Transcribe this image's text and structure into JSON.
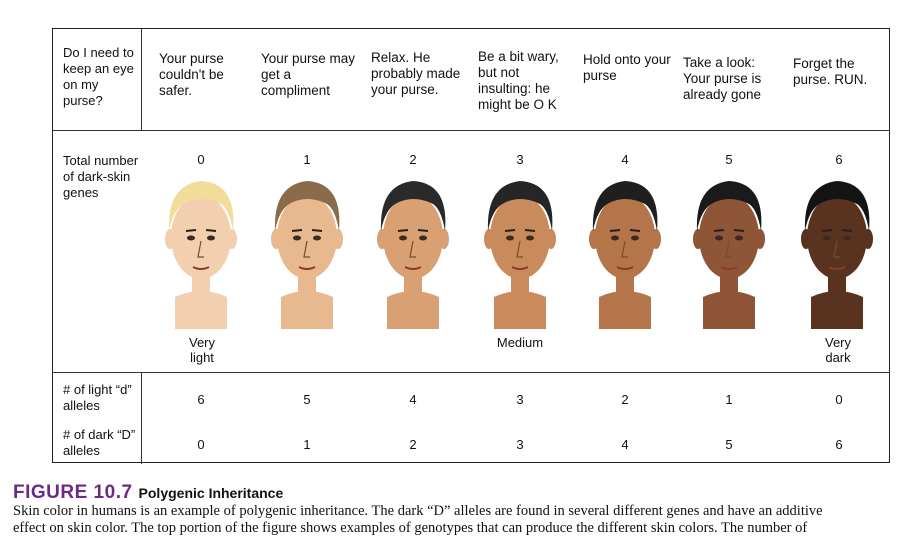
{
  "table": {
    "header_question": "Do I need to keep an eye on my purse?",
    "captions": [
      "Your purse couldn't be safer.",
      "Your purse may get a compliment",
      "Relax. He probably made your purse.",
      "Be a bit wary, but not insulting: he might be O K",
      "Hold onto your purse",
      "Take a look: Your purse is already gone",
      "Forget the purse. RUN."
    ],
    "genes_label": "Total number of dark-skin genes",
    "gene_counts": [
      "0",
      "1",
      "2",
      "3",
      "4",
      "5",
      "6"
    ],
    "shade_labels": {
      "light": "Very light",
      "medium": "Medium",
      "dark": "Very dark"
    },
    "light_label": "# of light “d” alleles",
    "light_counts": [
      "6",
      "5",
      "4",
      "3",
      "2",
      "1",
      "0"
    ],
    "dark_label": "# of dark “D” alleles",
    "dark_counts": [
      "0",
      "1",
      "2",
      "3",
      "4",
      "5",
      "6"
    ],
    "skin_colors": [
      "#f2cfae",
      "#e8b98e",
      "#d9a173",
      "#c98b5c",
      "#b4754a",
      "#8e5636",
      "#5a3320"
    ],
    "hair_colors": [
      "#f1dc9a",
      "#8a6b4a",
      "#2a2a2a",
      "#262626",
      "#1f1f1f",
      "#1a1a1a",
      "#141414"
    ]
  },
  "figure": {
    "label": "FIGURE 10.7",
    "title": "Polygenic Inheritance",
    "text_line1": "Skin color in humans is an example of polygenic inheritance. The dark “D” alleles are found in several different genes and have an additive",
    "text_line2": "effect on skin color. The top portion of the figure shows examples of genotypes that can produce the different skin colors. The number of"
  }
}
